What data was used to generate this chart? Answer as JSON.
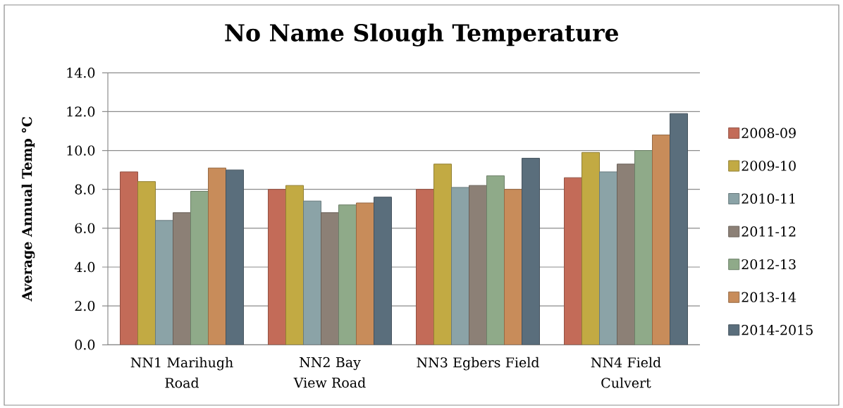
{
  "chart_data": {
    "type": "bar",
    "title": "No Name Slough Temperature",
    "ylabel": "Average Annual Temp °C",
    "categories": [
      "NN1 Marihugh Road",
      "NN2 Bay View Road",
      "NN3 Egbers Field",
      "NN4 Field Culvert"
    ],
    "series": [
      {
        "name": "2008-09",
        "color": "#c36b58",
        "values": [
          8.9,
          8.0,
          8.0,
          8.6
        ]
      },
      {
        "name": "2009-10",
        "color": "#c2aa43",
        "values": [
          8.4,
          8.2,
          9.3,
          9.9
        ]
      },
      {
        "name": "2010-11",
        "color": "#8ba3a7",
        "values": [
          6.4,
          7.4,
          8.1,
          8.9
        ]
      },
      {
        "name": "2011-12",
        "color": "#8c8076",
        "values": [
          6.8,
          6.8,
          8.2,
          9.3
        ]
      },
      {
        "name": "2012-13",
        "color": "#8faa89",
        "values": [
          7.9,
          7.2,
          8.7,
          10.0
        ]
      },
      {
        "name": "2013-14",
        "color": "#c88c5a",
        "values": [
          9.1,
          7.3,
          8.0,
          10.8
        ]
      },
      {
        "name": "2014-2015",
        "color": "#5a6e7c",
        "values": [
          9.0,
          7.6,
          9.6,
          11.9
        ]
      }
    ],
    "ylim": [
      0,
      14
    ],
    "yticks": [
      {
        "value": 0,
        "label": "0.0"
      },
      {
        "value": 2,
        "label": "2.0"
      },
      {
        "value": 4,
        "label": "4.0"
      },
      {
        "value": 6,
        "label": "6.0"
      },
      {
        "value": 8,
        "label": "8.0"
      },
      {
        "value": 10,
        "label": "10.0"
      },
      {
        "value": 12,
        "label": "12.0"
      },
      {
        "value": 14,
        "label": "14.0"
      }
    ],
    "grid": "y",
    "legend": "right"
  }
}
